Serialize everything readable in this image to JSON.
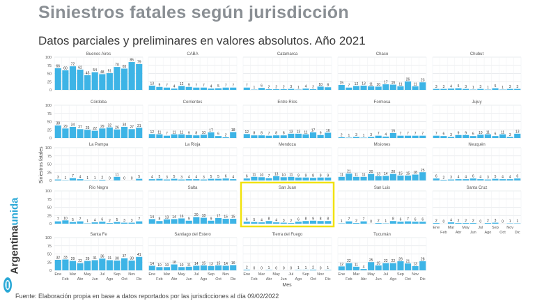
{
  "title": "Siniestros fatales según jurisdicción",
  "subtitle": "Datos parciales y preliminares en valores absolutos. Año 2021",
  "brand": {
    "part1": "Argentina",
    "part2": "unida"
  },
  "source": "Fuente: Elaboración propia en base a datos reportados por las jurisdicciones al día 09/02/2022",
  "chart_data": {
    "type": "bar",
    "ylabel": "Siniestros fatales",
    "xlabel": "Mes",
    "ylim": [
      0,
      100
    ],
    "yticks": [
      0,
      25,
      50,
      75,
      100
    ],
    "grid": true,
    "bar_color": "#3db4e6",
    "highlight_color": "#f1e20a",
    "highlight_panel": "San Juan",
    "x_tick_labels": [
      "Ene",
      "Feb",
      "Mar",
      "Abr",
      "May",
      "Jun",
      "Jul",
      "Ago",
      "Sep",
      "Oct",
      "Nov",
      "Dic"
    ],
    "panels": [
      {
        "name": "Buenos Aires",
        "values": [
          66,
          60,
          72,
          62,
          45,
          54,
          48,
          51,
          70,
          65,
          85,
          79
        ]
      },
      {
        "name": "CABA",
        "values": [
          13,
          9,
          7,
          4,
          12,
          9,
          7,
          7,
          4,
          5,
          7,
          7
        ]
      },
      {
        "name": "Catamarca",
        "values": [
          7,
          1,
          6,
          2,
          2,
          2,
          3,
          1,
          4,
          2,
          10,
          8
        ]
      },
      {
        "name": "Chaco",
        "values": [
          15,
          7,
          12,
          13,
          11,
          10,
          17,
          16,
          11,
          26,
          11,
          23
        ]
      },
      {
        "name": "Chubut",
        "values": [
          3,
          3,
          4,
          5,
          3,
          1,
          3,
          1,
          5,
          1,
          3,
          3
        ]
      },
      {
        "name": "Córdoba",
        "values": [
          38,
          29,
          34,
          27,
          25,
          22,
          29,
          32,
          26,
          34,
          27,
          31
        ]
      },
      {
        "name": "Corrientes",
        "values": [
          12,
          11,
          7,
          11,
          11,
          9,
          8,
          10,
          17,
          6,
          2,
          18
        ]
      },
      {
        "name": "Entre Ríos",
        "values": [
          12,
          8,
          8,
          7,
          8,
          8,
          13,
          13,
          11,
          17,
          9,
          16
        ]
      },
      {
        "name": "Formosa",
        "values": [
          2,
          1,
          3,
          1,
          3,
          7,
          4,
          15,
          7,
          7,
          7,
          7
        ]
      },
      {
        "name": "Jujuy",
        "values": [
          7,
          6,
          3,
          9,
          9,
          6,
          10,
          11,
          6,
          11,
          3,
          13
        ]
      },
      {
        "name": "La Pampa",
        "values": [
          3,
          1,
          7,
          4,
          1,
          1,
          2,
          0,
          11,
          0,
          0,
          5
        ]
      },
      {
        "name": "La Rioja",
        "values": [
          4,
          5,
          3,
          5,
          3,
          4,
          4,
          3,
          5,
          5,
          6,
          4
        ]
      },
      {
        "name": "Mendoza",
        "values": [
          6,
          11,
          10,
          7,
          13,
          10,
          11,
          9,
          9,
          8,
          9,
          9
        ]
      },
      {
        "name": "Misiones",
        "values": [
          11,
          21,
          11,
          11,
          20,
          13,
          14,
          20,
          15,
          15,
          18,
          25
        ]
      },
      {
        "name": "Neuquén",
        "values": [
          6,
          2,
          3,
          4,
          4,
          6,
          4,
          3,
          5,
          4,
          4,
          6
        ]
      },
      {
        "name": "Río Negro",
        "values": [
          7,
          10,
          5,
          7,
          1,
          4,
          6,
          2,
          5,
          3,
          3,
          7
        ]
      },
      {
        "name": "Salta",
        "values": [
          14,
          8,
          13,
          14,
          16,
          9,
          20,
          18,
          9,
          17,
          15,
          15
        ]
      },
      {
        "name": "San Juan",
        "values": [
          6,
          5,
          4,
          8,
          4,
          3,
          2,
          6,
          8,
          9,
          8,
          8
        ]
      },
      {
        "name": "San Luis",
        "values": [
          1,
          7,
          2,
          7,
          0,
          2,
          1,
          8,
          6,
          7,
          6,
          6
        ]
      },
      {
        "name": "Santa Cruz",
        "values": [
          2,
          0,
          4,
          2,
          2,
          2,
          0,
          2,
          3,
          0,
          1,
          1
        ]
      },
      {
        "name": "Santa Fe",
        "values": [
          32,
          33,
          29,
          22,
          29,
          31,
          36,
          31,
          30,
          37,
          30,
          41
        ]
      },
      {
        "name": "Santiago del Estero",
        "values": [
          14,
          10,
          10,
          18,
          10,
          11,
          14,
          15,
          13,
          15,
          14,
          16
        ]
      },
      {
        "name": "Tierra del Fuego",
        "values": [
          2,
          0,
          0,
          1,
          0,
          0,
          0,
          1,
          1,
          2,
          0,
          1
        ]
      },
      {
        "name": "Tucumán",
        "values": [
          12,
          22,
          11,
          4,
          25,
          15,
          22,
          22,
          28,
          21,
          13,
          28
        ]
      }
    ]
  }
}
